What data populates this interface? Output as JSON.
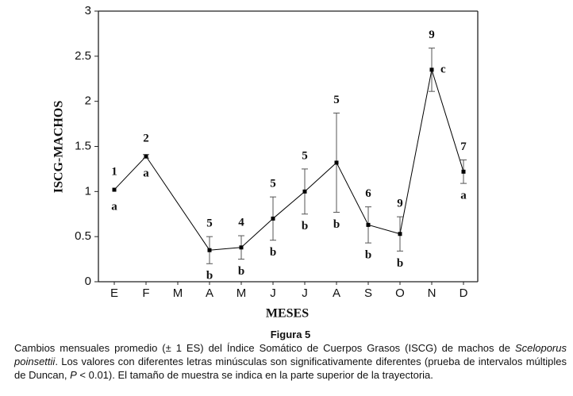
{
  "chart_data": {
    "type": "line",
    "x_label": "MESES",
    "y_label": "ISCG-MACHOS",
    "categories": [
      "E",
      "F",
      "M",
      "A",
      "M",
      "J",
      "J",
      "A",
      "S",
      "O",
      "N",
      "D"
    ],
    "series": [
      {
        "color": "#000000",
        "values": [
          1.02,
          1.39,
          null,
          0.35,
          0.38,
          0.7,
          1.0,
          1.32,
          0.63,
          0.53,
          2.35,
          1.22
        ],
        "errors": [
          null,
          0.02,
          null,
          0.15,
          0.13,
          0.24,
          0.25,
          0.55,
          0.2,
          0.19,
          0.24,
          0.13
        ],
        "sample_sizes": [
          "1",
          "2",
          null,
          "5",
          "4",
          "5",
          "5",
          "5",
          "6",
          "9",
          "9",
          "7"
        ],
        "letters": [
          "a",
          "a",
          null,
          "b",
          "b",
          "b",
          "b",
          "b",
          "b",
          "b",
          "c",
          "a"
        ]
      }
    ],
    "ylim": [
      0,
      3
    ],
    "yticks": [
      0,
      0.5,
      1,
      1.5,
      2,
      2.5,
      3
    ],
    "grid": false
  },
  "caption": {
    "title": "Figura 5",
    "parts": [
      {
        "text": "Cambios mensuales promedio (± 1 ES) del Índice Somático de Cuerpos Grasos (ISCG) de machos de ",
        "italic": false
      },
      {
        "text": "Sceloporus poinsettii",
        "italic": true
      },
      {
        "text": ". Los valores con diferentes letras minúsculas son significativamente diferentes (prueba de intervalos múltiples de Duncan, ",
        "italic": false
      },
      {
        "text": "P",
        "italic": true
      },
      {
        "text": " < 0.01). El tamaño de muestra se indica en la parte superior de la trayectoria.",
        "italic": false
      }
    ]
  }
}
